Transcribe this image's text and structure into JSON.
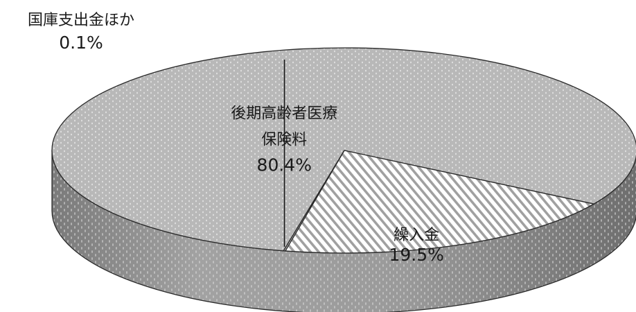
{
  "chart_data": {
    "type": "pie",
    "style": "3d",
    "slices": [
      {
        "label_lines": [
          "後期高齢者医療",
          "保険料"
        ],
        "value": 80.4,
        "value_text": "80.4%",
        "pattern": "dots"
      },
      {
        "label_lines": [
          "繰入金"
        ],
        "value": 19.5,
        "value_text": "19.5%",
        "pattern": "stripes"
      },
      {
        "label_lines": [
          "国庫支出金ほか"
        ],
        "value": 0.1,
        "value_text": "0.1%",
        "pattern": "dots"
      }
    ],
    "colors": {
      "top_fill": "#b8b8b8",
      "side_fill": "#8f8f8f",
      "stripe_bg": "#ffffff",
      "stripe_line": "#a0a0a0",
      "outline": "#2a2a2a"
    }
  }
}
